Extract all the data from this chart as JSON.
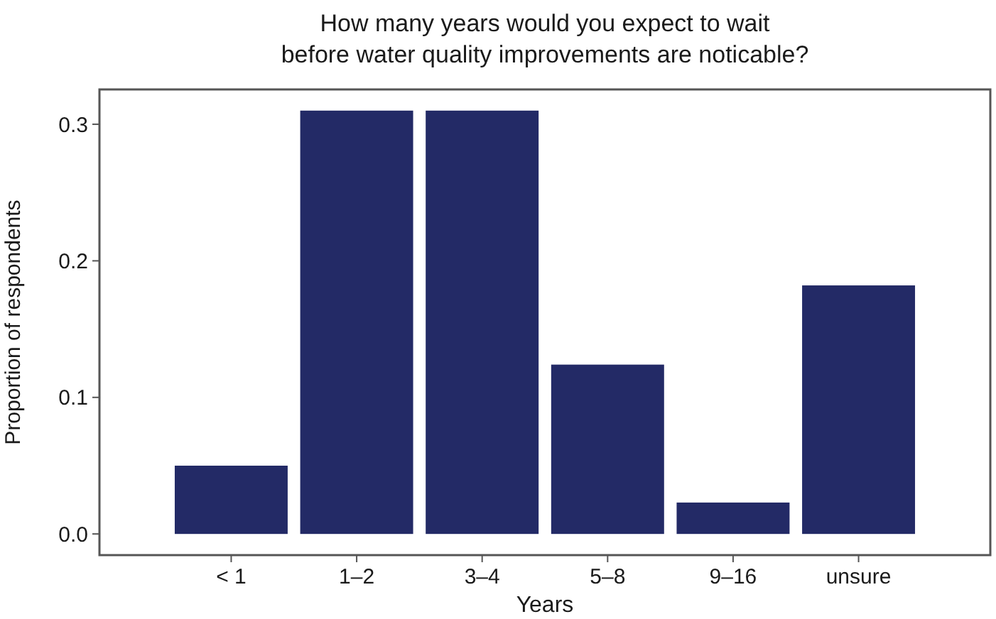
{
  "chart_data": {
    "type": "bar",
    "title": "How many years would you expect to wait\nbefore water quality improvements are noticable?",
    "xlabel": "Years",
    "ylabel": "Proportion of respondents",
    "categories": [
      "< 1",
      "1–2",
      "3–4",
      "5–8",
      "9–16",
      "unsure"
    ],
    "values": [
      0.05,
      0.31,
      0.31,
      0.124,
      0.023,
      0.182
    ],
    "color": "#232a66",
    "ylim": [
      -0.0155,
      0.3255
    ],
    "yticks": [
      {
        "value": 0,
        "label": "0.0"
      },
      {
        "value": 0.1,
        "label": "0.1"
      },
      {
        "value": 0.2,
        "label": "0.2"
      },
      {
        "value": 0.3,
        "label": "0.3"
      }
    ],
    "grid": false
  }
}
